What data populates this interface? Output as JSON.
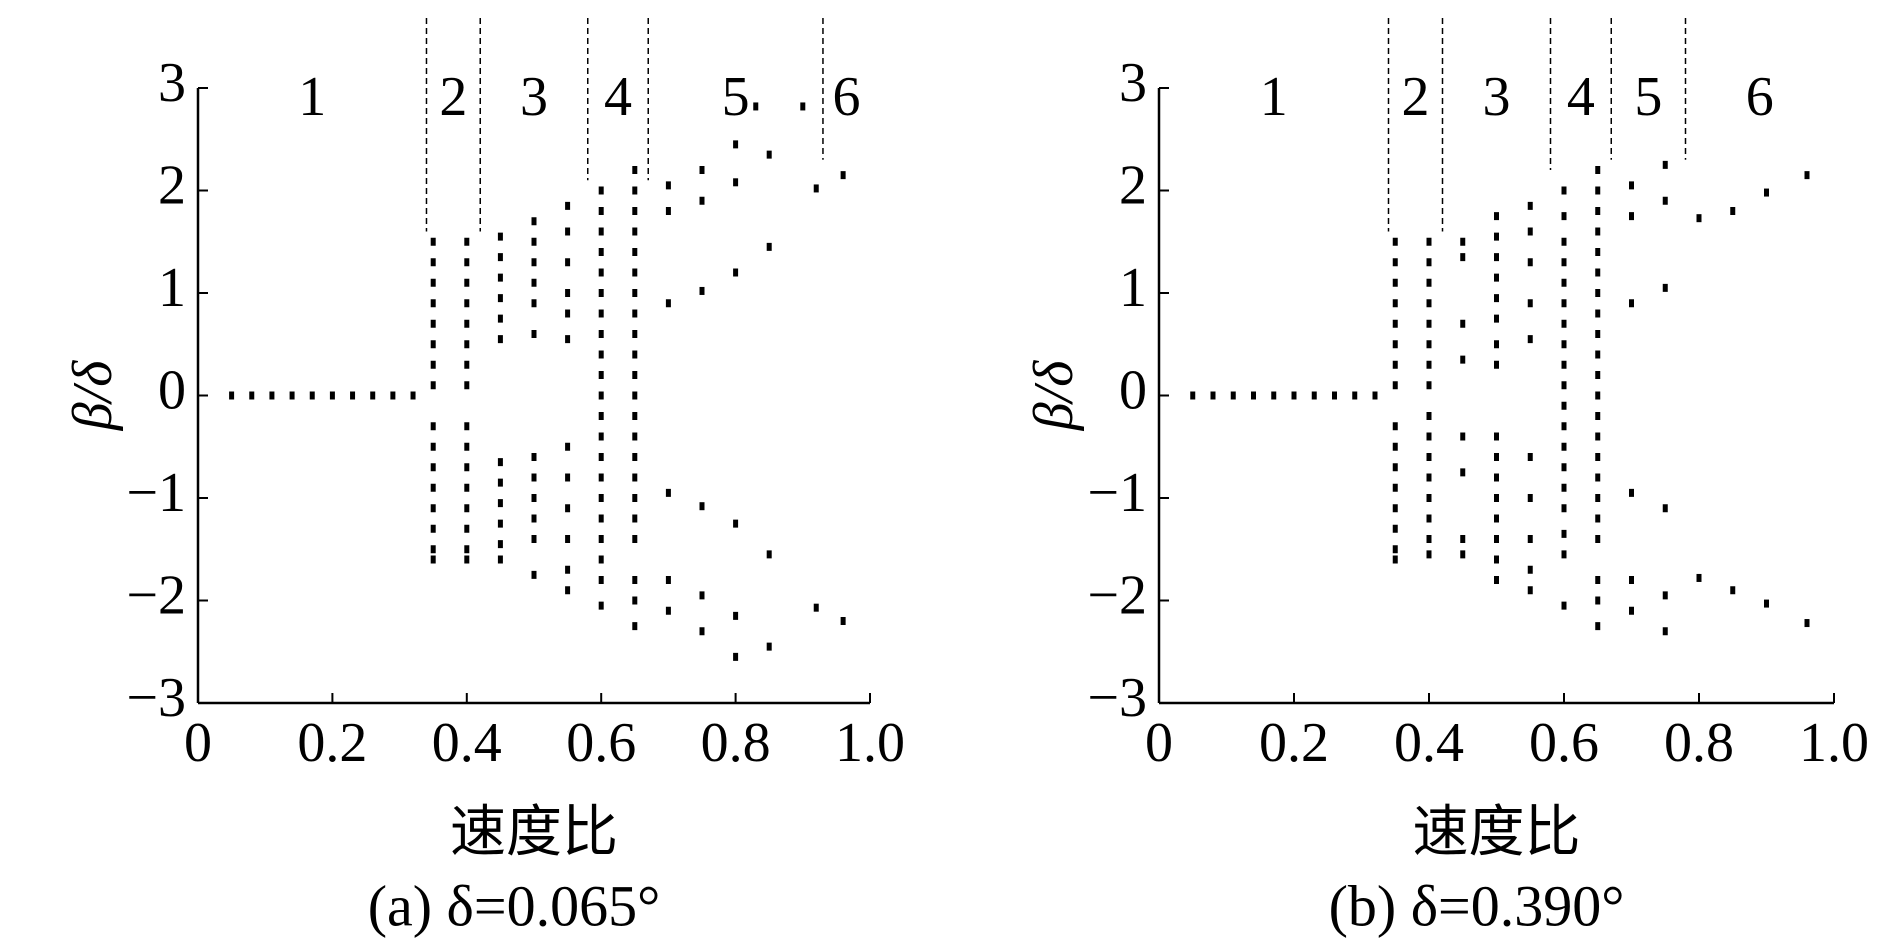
{
  "chart_data": [
    {
      "type": "scatter",
      "title": "(a) δ=0.065°",
      "xlabel": "速度比",
      "ylabel": "β/δ",
      "color": "#000000",
      "xlim": [
        0,
        1
      ],
      "ylim": [
        -3,
        3
      ],
      "xticks": [
        0,
        0.2,
        0.4,
        0.6,
        0.8,
        {
          "value": 1,
          "label": "1.0"
        }
      ],
      "yticks": [
        {
          "value": -3,
          "label": "−3"
        },
        {
          "value": -2,
          "label": "−2"
        },
        {
          "value": -1,
          "label": "−1"
        },
        0,
        1,
        2,
        3
      ],
      "regions": [
        "1",
        "2",
        "3",
        "4",
        "5",
        "6"
      ],
      "boundaries": [
        0.34,
        0.42,
        0.58,
        0.67,
        0.93
      ],
      "boundary_bottoms": [
        1.6,
        1.6,
        2.1,
        2.1,
        2.3
      ],
      "x": [
        0.05,
        0.08,
        0.11,
        0.14,
        0.17,
        0.2,
        0.23,
        0.26,
        0.29,
        0.32,
        0.35,
        0.35,
        0.35,
        0.35,
        0.35,
        0.35,
        0.35,
        0.35,
        0.35,
        0.35,
        0.35,
        0.35,
        0.35,
        0.35,
        0.35,
        0.35,
        0.4,
        0.4,
        0.4,
        0.4,
        0.4,
        0.4,
        0.4,
        0.4,
        0.4,
        0.4,
        0.4,
        0.4,
        0.4,
        0.4,
        0.4,
        0.4,
        0.45,
        0.45,
        0.45,
        0.45,
        0.45,
        0.45,
        0.45,
        0.45,
        0.45,
        0.45,
        0.45,
        0.45,
        0.5,
        0.5,
        0.5,
        0.5,
        0.5,
        0.5,
        0.5,
        0.5,
        0.5,
        0.5,
        0.5,
        0.5,
        0.55,
        0.55,
        0.55,
        0.55,
        0.55,
        0.55,
        0.55,
        0.55,
        0.55,
        0.55,
        0.55,
        0.55,
        0.6,
        0.6,
        0.6,
        0.6,
        0.6,
        0.6,
        0.6,
        0.6,
        0.6,
        0.6,
        0.6,
        0.6,
        0.6,
        0.6,
        0.6,
        0.6,
        0.6,
        0.6,
        0.6,
        0.6,
        0.6,
        0.65,
        0.65,
        0.65,
        0.65,
        0.65,
        0.65,
        0.65,
        0.65,
        0.65,
        0.65,
        0.65,
        0.65,
        0.65,
        0.65,
        0.65,
        0.65,
        0.65,
        0.65,
        0.65,
        0.65,
        0.65,
        0.65,
        0.7,
        0.7,
        0.7,
        0.7,
        0.7,
        0.7,
        0.75,
        0.75,
        0.75,
        0.75,
        0.75,
        0.75,
        0.8,
        0.8,
        0.8,
        0.8,
        0.8,
        0.8,
        0.85,
        0.85,
        0.85,
        0.85,
        0.83,
        0.9,
        0.92,
        0.92,
        0.96,
        0.96
      ],
      "values": [
        0,
        0,
        0,
        0,
        0,
        0,
        0,
        0,
        0,
        0,
        1.5,
        1.3,
        1.1,
        0.9,
        0.7,
        0.5,
        0.3,
        0.1,
        -0.3,
        -0.5,
        -0.7,
        -0.9,
        -1.1,
        -1.3,
        -1.5,
        -1.6,
        1.5,
        1.3,
        1.1,
        0.9,
        0.7,
        0.5,
        0.3,
        0.1,
        -0.3,
        -0.5,
        -0.7,
        -0.9,
        -1.1,
        -1.3,
        -1.5,
        -1.6,
        1.55,
        1.35,
        1.15,
        0.95,
        0.75,
        0.55,
        -0.65,
        -0.85,
        -1.05,
        -1.25,
        -1.45,
        -1.6,
        1.7,
        1.5,
        1.3,
        1.1,
        0.9,
        0.6,
        -0.6,
        -0.8,
        -1.0,
        -1.2,
        -1.4,
        -1.75,
        1.85,
        1.6,
        1.3,
        1.0,
        0.8,
        0.55,
        -0.5,
        -0.8,
        -1.1,
        -1.4,
        -1.7,
        -1.9,
        2.0,
        1.8,
        1.6,
        1.4,
        1.2,
        1.0,
        0.8,
        0.6,
        0.4,
        0.2,
        0,
        -0.2,
        -0.4,
        -0.6,
        -0.8,
        -1.0,
        -1.2,
        -1.4,
        -1.6,
        -1.8,
        -2.05,
        2.2,
        2.0,
        1.8,
        1.6,
        1.4,
        1.2,
        1.0,
        0.8,
        0.6,
        0.4,
        0.2,
        0,
        -0.2,
        -0.4,
        -0.6,
        -0.8,
        -1.0,
        -1.2,
        -1.4,
        -1.8,
        -2.0,
        -2.25,
        2.05,
        1.8,
        0.9,
        -0.95,
        -1.8,
        -2.1,
        2.2,
        1.9,
        1.02,
        -1.08,
        -1.95,
        -2.3,
        2.45,
        2.08,
        1.2,
        -1.25,
        -2.15,
        -2.55,
        2.35,
        1.45,
        -1.55,
        -2.45,
        2.82,
        2.82,
        2.02,
        -2.07,
        2.15,
        -2.2
      ]
    },
    {
      "type": "scatter",
      "title": "(b) δ=0.390°",
      "xlabel": "速度比",
      "ylabel": "β/δ",
      "color": "#000000",
      "xlim": [
        0,
        1
      ],
      "ylim": [
        -3,
        3
      ],
      "xticks": [
        0,
        0.2,
        0.4,
        0.6,
        0.8,
        {
          "value": 1,
          "label": "1.0"
        }
      ],
      "yticks": [
        {
          "value": -3,
          "label": "−3"
        },
        {
          "value": -2,
          "label": "−2"
        },
        {
          "value": -1,
          "label": "−1"
        },
        0,
        1,
        2,
        3
      ],
      "regions": [
        "1",
        "2",
        "3",
        "4",
        "5",
        "6"
      ],
      "boundaries": [
        0.34,
        0.42,
        0.58,
        0.67,
        0.78
      ],
      "boundary_bottoms": [
        1.6,
        1.6,
        2.2,
        2.3,
        2.3
      ],
      "x": [
        0.05,
        0.08,
        0.11,
        0.14,
        0.17,
        0.2,
        0.23,
        0.26,
        0.29,
        0.32,
        0.35,
        0.35,
        0.35,
        0.35,
        0.35,
        0.35,
        0.35,
        0.35,
        0.35,
        0.35,
        0.35,
        0.35,
        0.35,
        0.35,
        0.35,
        0.35,
        0.4,
        0.4,
        0.4,
        0.4,
        0.4,
        0.4,
        0.4,
        0.4,
        0.4,
        0.4,
        0.4,
        0.4,
        0.4,
        0.4,
        0.4,
        0.4,
        0.45,
        0.45,
        0.45,
        0.45,
        0.45,
        0.45,
        0.45,
        0.45,
        0.5,
        0.5,
        0.5,
        0.5,
        0.5,
        0.5,
        0.5,
        0.5,
        0.5,
        0.5,
        0.5,
        0.5,
        0.5,
        0.5,
        0.5,
        0.5,
        0.55,
        0.55,
        0.55,
        0.55,
        0.55,
        0.55,
        0.55,
        0.55,
        0.55,
        0.55,
        0.6,
        0.6,
        0.6,
        0.6,
        0.6,
        0.6,
        0.6,
        0.6,
        0.6,
        0.6,
        0.6,
        0.6,
        0.6,
        0.6,
        0.6,
        0.6,
        0.6,
        0.6,
        0.6,
        0.65,
        0.65,
        0.65,
        0.65,
        0.65,
        0.65,
        0.65,
        0.65,
        0.65,
        0.65,
        0.65,
        0.65,
        0.65,
        0.65,
        0.65,
        0.65,
        0.65,
        0.65,
        0.65,
        0.65,
        0.65,
        0.65,
        0.7,
        0.7,
        0.7,
        0.7,
        0.7,
        0.7,
        0.75,
        0.75,
        0.75,
        0.75,
        0.75,
        0.75,
        0.8,
        0.8,
        0.85,
        0.85,
        0.9,
        0.9,
        0.96,
        0.96
      ],
      "values": [
        0,
        0,
        0,
        0,
        0,
        0,
        0,
        0,
        0,
        0,
        1.5,
        1.3,
        1.1,
        0.9,
        0.7,
        0.5,
        0.3,
        0.1,
        -0.3,
        -0.5,
        -0.7,
        -0.9,
        -1.1,
        -1.3,
        -1.5,
        -1.6,
        1.5,
        1.3,
        1.1,
        0.9,
        0.7,
        0.5,
        0.3,
        0.1,
        -0.2,
        -0.4,
        -0.6,
        -0.8,
        -1.0,
        -1.2,
        -1.4,
        -1.55,
        1.5,
        1.35,
        0.7,
        0.35,
        -0.4,
        -0.75,
        -1.4,
        -1.55,
        1.75,
        1.55,
        1.35,
        1.15,
        0.95,
        0.75,
        0.5,
        0.3,
        -0.4,
        -0.6,
        -0.8,
        -1.0,
        -1.2,
        -1.4,
        -1.6,
        -1.8,
        1.85,
        1.6,
        1.3,
        0.9,
        0.55,
        -0.6,
        -1.0,
        -1.4,
        -1.7,
        -1.9,
        2.0,
        1.75,
        1.5,
        1.3,
        1.1,
        0.9,
        0.7,
        0.5,
        0.3,
        0.1,
        -0.1,
        -0.3,
        -0.5,
        -0.7,
        -0.9,
        -1.1,
        -1.35,
        -1.55,
        -2.05,
        2.2,
        2.0,
        1.8,
        1.6,
        1.4,
        1.2,
        1.0,
        0.8,
        0.6,
        0.4,
        0.2,
        0,
        -0.2,
        -0.4,
        -0.6,
        -0.8,
        -1.0,
        -1.2,
        -1.4,
        -1.8,
        -2.0,
        -2.25,
        2.05,
        1.75,
        0.9,
        -0.95,
        -1.8,
        -2.1,
        2.25,
        1.9,
        1.05,
        -1.1,
        -1.95,
        -2.3,
        1.73,
        -1.78,
        1.8,
        -1.9,
        1.98,
        -2.03,
        2.15,
        -2.22
      ]
    }
  ]
}
